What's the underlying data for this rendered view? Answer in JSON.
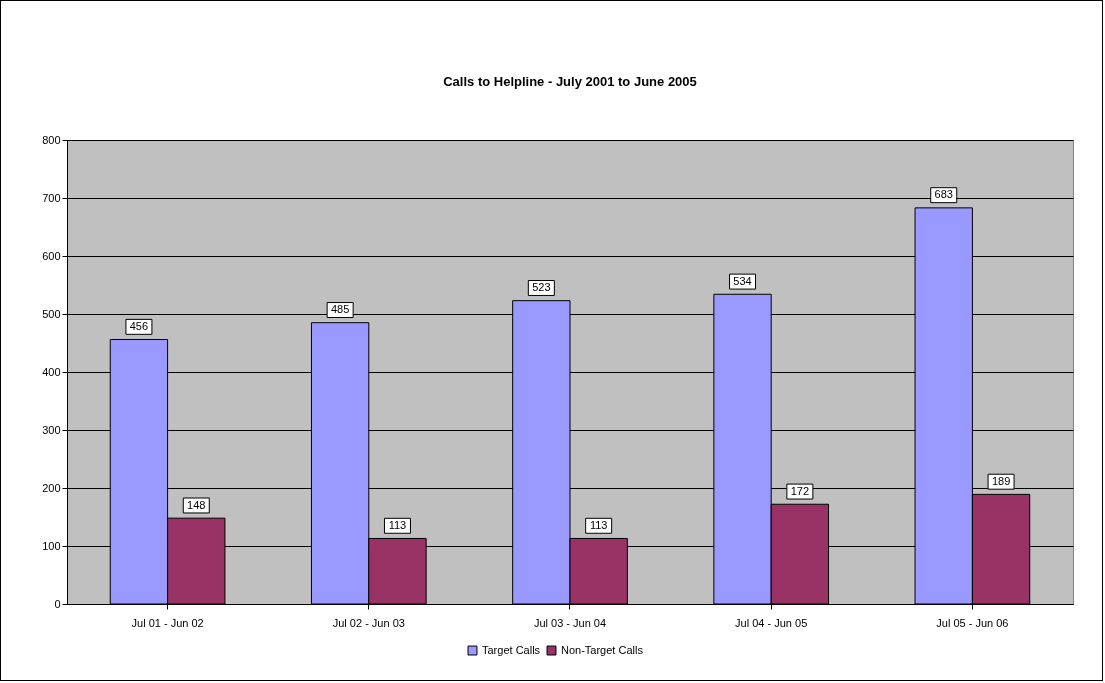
{
  "chart_data": {
    "type": "bar",
    "title": "Calls to Helpline - July 2001 to June 2005",
    "categories": [
      "Jul 01 - Jun 02",
      "Jul 02 - Jun 03",
      "Jul 03 - Jun 04",
      "Jul 04 - Jun 05",
      "Jul 05 - Jun 06"
    ],
    "series": [
      {
        "name": "Target Calls",
        "color": "#9999ff",
        "values": [
          456,
          485,
          523,
          534,
          683
        ]
      },
      {
        "name": "Non-Target Calls",
        "color": "#993366",
        "values": [
          148,
          113,
          113,
          172,
          189
        ]
      }
    ],
    "ylim": [
      0,
      800
    ],
    "yticks": [
      0,
      100,
      200,
      300,
      400,
      500,
      600,
      700,
      800
    ],
    "grid": "y",
    "legend": "bottom",
    "data_labels": true
  }
}
